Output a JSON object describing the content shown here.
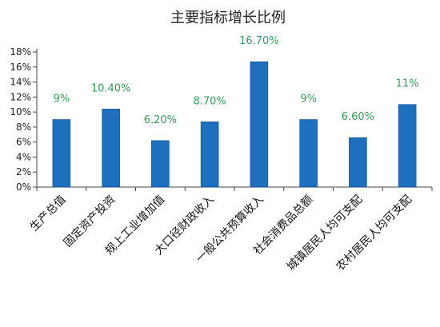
{
  "chart_data": {
    "type": "bar",
    "title": "主要指标增长比例",
    "xlabel": "",
    "ylabel": "",
    "categories": [
      "生产总值",
      "固定资产投资",
      "规上工业增加值",
      "大口径财政收入",
      "一般公共预算收入",
      "社会消费品总额",
      "城镇居民人均可支配",
      "农村居民人均可支配"
    ],
    "values": [
      9,
      10.4,
      6.2,
      8.7,
      16.7,
      9,
      6.6,
      11
    ],
    "data_labels": [
      "9%",
      "10.40%",
      "6.20%",
      "8.70%",
      "16.70%",
      "9%",
      "6.60%",
      "11%"
    ],
    "ylim": [
      0,
      18
    ],
    "yticks": [
      0,
      2,
      4,
      6,
      8,
      10,
      12,
      14,
      16,
      18
    ],
    "ytick_labels": [
      "0%",
      "2%",
      "4%",
      "6%",
      "8%",
      "10%",
      "12%",
      "14%",
      "16%",
      "18%"
    ],
    "grid": false,
    "legend": "none",
    "colors": {
      "bar": "#1f6fbf",
      "bar_edge": "#174f8a",
      "data_label": "#3a9a5a"
    }
  }
}
